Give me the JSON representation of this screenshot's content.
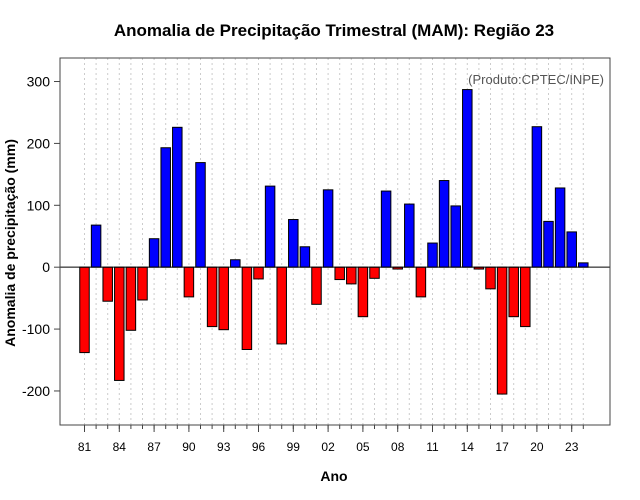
{
  "chart_data": {
    "type": "bar",
    "title": "Anomalia de Precipitação Trimestral (MAM): Região 23",
    "xlabel": "Ano",
    "ylabel": "Anomalia de precipitação (mm)",
    "credit": "(Produto:CPTEC/INPE)",
    "ylim": [
      -255,
      338
    ],
    "yticks": [
      -200,
      -100,
      0,
      100,
      200,
      300
    ],
    "years": [
      "81",
      "82",
      "83",
      "84",
      "85",
      "86",
      "87",
      "88",
      "89",
      "90",
      "91",
      "92",
      "93",
      "94",
      "95",
      "96",
      "97",
      "98",
      "99",
      "00",
      "01",
      "02",
      "03",
      "04",
      "05",
      "06",
      "07",
      "08",
      "09",
      "10",
      "11",
      "12",
      "13",
      "14",
      "15",
      "16",
      "17",
      "18",
      "19",
      "20",
      "21",
      "22",
      "23",
      "24"
    ],
    "tick_labels": [
      "81",
      "84",
      "87",
      "90",
      "93",
      "96",
      "99",
      "02",
      "05",
      "08",
      "11",
      "14",
      "17",
      "20",
      "23"
    ],
    "values": [
      -138,
      68,
      -55,
      -183,
      -102,
      -53,
      46,
      193,
      226,
      -48,
      169,
      -96,
      -101,
      12,
      -133,
      -19,
      131,
      -124,
      77,
      33,
      -60,
      125,
      -20,
      -27,
      -80,
      -18,
      123,
      -3,
      102,
      -48,
      39,
      140,
      99,
      287,
      -3,
      -35,
      -205,
      -80,
      -96,
      227,
      74,
      128,
      57,
      7
    ],
    "positive_color": "#0000ff",
    "negative_color": "#ff0000",
    "grid": true
  }
}
